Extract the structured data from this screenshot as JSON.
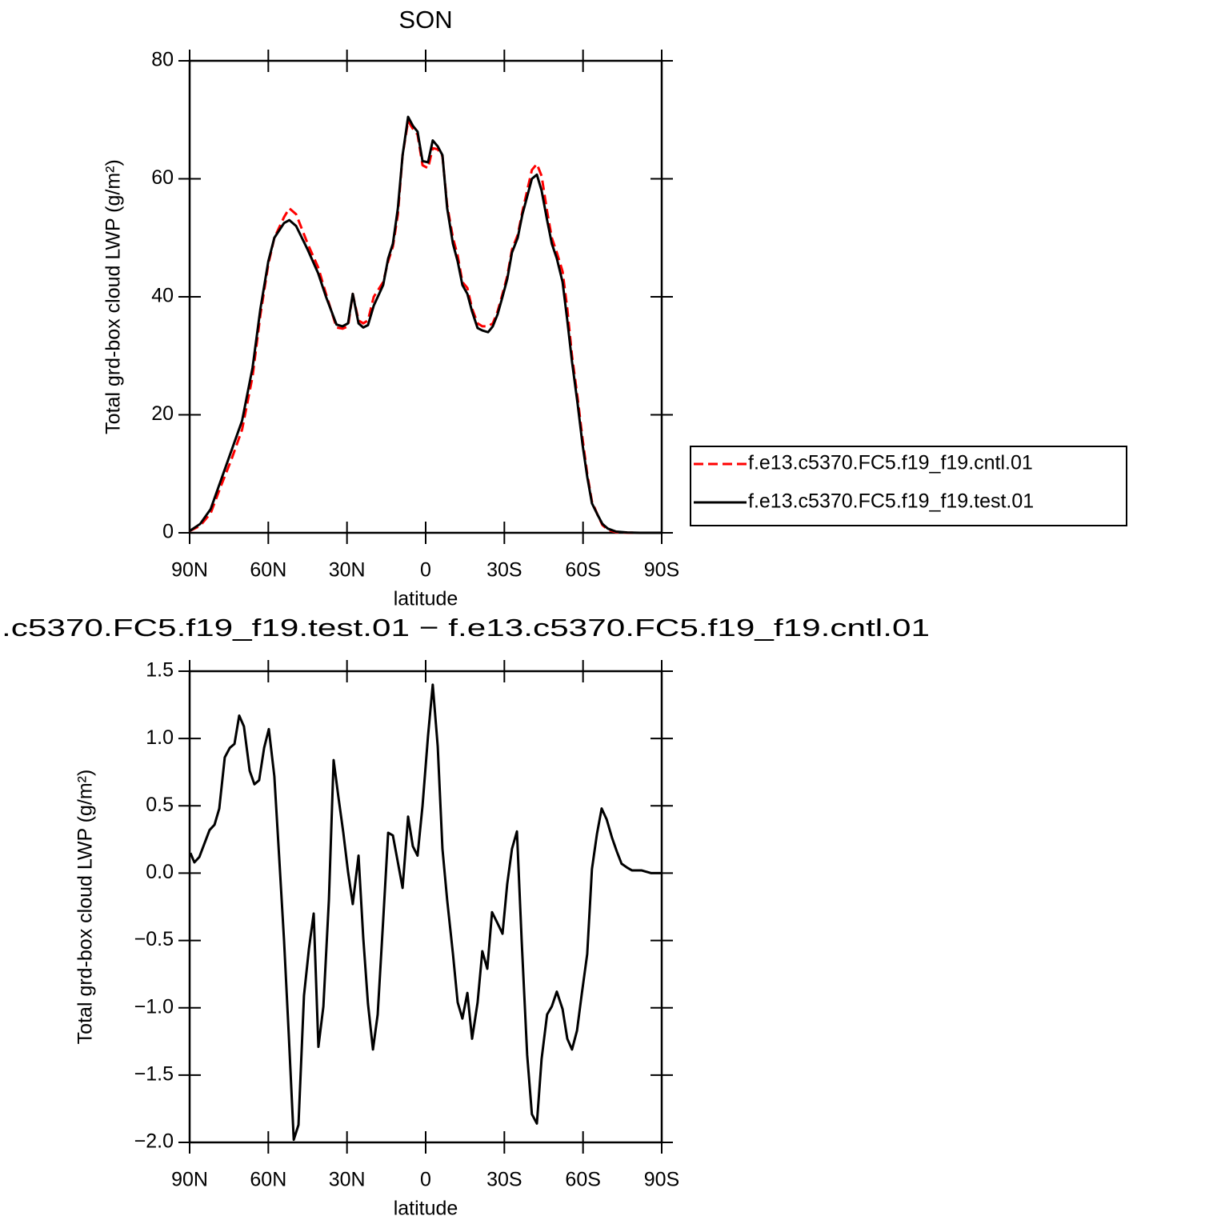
{
  "chart_data": [
    {
      "type": "line",
      "title": "SON",
      "xlabel": "latitude",
      "ylabel": "Total grd-box cloud LWP (g/m²)",
      "x": [
        90,
        86,
        82,
        78,
        74,
        70,
        66,
        63,
        60,
        57.7,
        54,
        52,
        49.4,
        45,
        41,
        38,
        34,
        31.7,
        29.6,
        27.8,
        25.6,
        23.8,
        22,
        19.8,
        16.2,
        14.3,
        12.5,
        10.6,
        8.8,
        6.7,
        4.9,
        3.1,
        1.2,
        -0.9,
        -2.7,
        -4.6,
        -6.4,
        -8.2,
        -10.4,
        -12.2,
        -14,
        -15.9,
        -17.7,
        -19.8,
        -21.6,
        -23.8,
        -25.6,
        -27.4,
        -29.3,
        -31.1,
        -32.9,
        -35.1,
        -36.9,
        -38.7,
        -40.5,
        -42.4,
        -44.2,
        -46.3,
        -48.1,
        -50,
        -52.2,
        -54,
        -55.8,
        -57.9,
        -59.8,
        -61.6,
        -63.4,
        -65.6,
        -67.4,
        -69.5,
        -72.6,
        -76.9,
        -81.7,
        -90
      ],
      "series": [
        {
          "name": "f.e13.c5370.FC5.f19_f19.cntl.01",
          "color": "#ff0000",
          "linestyle": "dashed",
          "values": [
            0.3,
            1.2,
            3.3,
            8,
            12.5,
            17.5,
            26.5,
            37,
            45.5,
            50,
            53.5,
            55,
            54,
            49,
            45,
            40.5,
            34.8,
            34.6,
            35,
            40.5,
            36,
            35.5,
            36,
            40,
            42.5,
            46,
            48.5,
            54,
            64,
            69.8,
            68.5,
            67.5,
            62.3,
            61.8,
            65.2,
            65,
            63.8,
            55.5,
            50,
            47,
            42.5,
            41.5,
            38,
            35.5,
            35,
            35,
            35.5,
            37.5,
            40.5,
            43.5,
            48,
            50.5,
            54.5,
            58,
            61.5,
            62.5,
            60.5,
            54.5,
            50,
            47.5,
            44.3,
            38,
            30,
            23,
            16,
            10,
            5.3,
            3,
            1.3,
            0.5,
            0.1,
            0.02,
            0,
            0
          ]
        },
        {
          "name": "f.e13.c5370.FC5.f19_f19.test.01",
          "color": "#000000",
          "linestyle": "solid",
          "values": [
            0.3,
            1.5,
            4,
            9,
            14,
            19,
            28,
            38,
            46,
            50,
            52.5,
            53,
            52,
            48,
            44,
            40,
            35.3,
            35,
            35.5,
            40.5,
            35.5,
            34.8,
            35.2,
            38.5,
            42,
            46.5,
            49,
            55,
            64,
            70.5,
            69,
            68,
            63,
            62.8,
            66.5,
            65.5,
            64,
            55,
            49,
            46,
            42,
            40.5,
            37.5,
            34.7,
            34.3,
            34,
            35,
            37,
            40,
            43,
            47.5,
            50,
            54,
            57,
            60,
            60.7,
            58,
            53,
            49,
            46.5,
            42.5,
            36,
            29,
            22,
            15,
            9.5,
            5,
            3,
            1.5,
            0.7,
            0.2,
            0.05,
            0,
            0
          ]
        }
      ],
      "xlim": [
        90,
        -90
      ],
      "xticks": [
        {
          "value": 90,
          "label": "90N"
        },
        {
          "value": 60,
          "label": "60N"
        },
        {
          "value": 30,
          "label": "30N"
        },
        0,
        {
          "value": -30,
          "label": "30S"
        },
        {
          "value": -60,
          "label": "60S"
        },
        {
          "value": -90,
          "label": "90S"
        }
      ],
      "ylim": [
        0,
        80
      ],
      "yticks": [
        0,
        20,
        40,
        60,
        80
      ],
      "legend": "right"
    },
    {
      "type": "line",
      "title": ".c5370.FC5.f19_f19.test.01 − f.e13.c5370.FC5.f19_f19.cntl.01",
      "xlabel": "latitude",
      "ylabel": "Total grd-box cloud LWP (g/m²)",
      "x": [
        89.7,
        88.2,
        86.3,
        82.4,
        80.5,
        78.7,
        76.6,
        74.7,
        72.9,
        71.1,
        69.3,
        67.1,
        65.3,
        63.5,
        61.6,
        59.8,
        57.7,
        55.8,
        54,
        52.2,
        50.3,
        48.5,
        46.4,
        44.5,
        42.7,
        40.9,
        39,
        36.9,
        35.1,
        33.3,
        31.4,
        29.6,
        27.8,
        25.6,
        23.8,
        22,
        20.1,
        18.3,
        16.2,
        14.3,
        12.5,
        10.6,
        8.8,
        6.7,
        4.9,
        3.1,
        1.2,
        -0.9,
        -2.7,
        -4.6,
        -6.4,
        -8.2,
        -10.4,
        -12.2,
        -14,
        -15.9,
        -17.7,
        -19.8,
        -21.6,
        -23.5,
        -25.3,
        -27.1,
        -29.3,
        -31.1,
        -32.9,
        -34.8,
        -36.6,
        -38.7,
        -40.5,
        -42.4,
        -44.2,
        -46.3,
        -48.1,
        -50,
        -52.2,
        -54,
        -55.8,
        -57.7,
        -59.5,
        -61.6,
        -63.4,
        -65.3,
        -67.1,
        -69,
        -71.1,
        -72.9,
        -74.7,
        -76.9,
        -78.7,
        -82.4,
        -86,
        -90
      ],
      "color": "#000000",
      "values": [
        0.15,
        0.08,
        0.12,
        0.32,
        0.36,
        0.48,
        0.86,
        0.93,
        0.96,
        1.17,
        1.09,
        0.76,
        0.66,
        0.69,
        0.93,
        1.07,
        0.72,
        0.1,
        -0.5,
        -1.2,
        -1.98,
        -1.87,
        -0.91,
        -0.56,
        -0.3,
        -1.29,
        -0.99,
        -0.2,
        0.84,
        0.57,
        0.3,
        0.01,
        -0.23,
        0.13,
        -0.48,
        -0.97,
        -1.31,
        -1.05,
        -0.35,
        0.3,
        0.28,
        0.08,
        -0.11,
        0.42,
        0.2,
        0.13,
        0.5,
        1.02,
        1.4,
        0.94,
        0.18,
        -0.2,
        -0.6,
        -0.96,
        -1.08,
        -0.89,
        -1.23,
        -0.96,
        -0.58,
        -0.71,
        -0.29,
        -0.36,
        -0.45,
        -0.08,
        0.18,
        0.31,
        -0.5,
        -1.35,
        -1.79,
        -1.86,
        -1.38,
        -1.05,
        -0.99,
        -0.88,
        -1.01,
        -1.23,
        -1.31,
        -1.17,
        -0.9,
        -0.6,
        0.03,
        0.29,
        0.48,
        0.4,
        0.26,
        0.16,
        0.07,
        0.04,
        0.02,
        0.02,
        0,
        0
      ],
      "xlim": [
        90,
        -90
      ],
      "xticks": [
        {
          "value": 90,
          "label": "90N"
        },
        {
          "value": 60,
          "label": "60N"
        },
        {
          "value": 30,
          "label": "30N"
        },
        0,
        {
          "value": -30,
          "label": "30S"
        },
        {
          "value": -60,
          "label": "60S"
        },
        {
          "value": -90,
          "label": "90S"
        }
      ],
      "ylim": [
        -2,
        1.5
      ],
      "yticks": [
        {
          "value": -2,
          "label": "−2.0"
        },
        {
          "value": -1.5,
          "label": "−1.5"
        },
        {
          "value": -1,
          "label": "−1.0"
        },
        {
          "value": -0.5,
          "label": "−0.5"
        },
        {
          "value": 0,
          "label": "0.0"
        },
        0.5,
        {
          "value": 1,
          "label": "1.0"
        },
        1.5
      ]
    }
  ]
}
